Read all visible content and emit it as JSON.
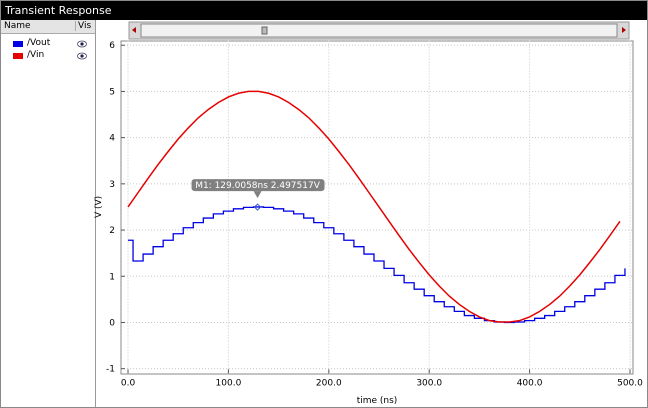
{
  "window_title": "Transient Response",
  "panel": {
    "name_header": "Name",
    "vis_header": "Vis"
  },
  "chart_data": {
    "type": "line",
    "xlabel": "time (ns)",
    "ylabel": "V (V)",
    "xlim": [
      -7,
      503
    ],
    "ylim": [
      -1.1,
      6.1
    ],
    "xticks": [
      {
        "value": 0,
        "label": "0.0"
      },
      {
        "value": 100,
        "label": "100.0"
      },
      {
        "value": 200,
        "label": "200.0"
      },
      {
        "value": 300,
        "label": "300.0"
      },
      {
        "value": 400,
        "label": "400.0"
      },
      {
        "value": 500,
        "label": "500.0"
      }
    ],
    "yticks": [
      -1,
      0,
      1,
      2,
      3,
      4,
      5,
      6
    ],
    "grid": true,
    "series": [
      {
        "name": "/Vout",
        "color": "#0000e6",
        "step": true,
        "x": [
          0,
          5,
          15,
          25,
          35,
          45,
          55,
          65,
          75,
          85,
          95,
          105,
          115,
          125,
          135,
          145,
          155,
          165,
          175,
          185,
          195,
          205,
          215,
          225,
          235,
          245,
          255,
          265,
          275,
          285,
          295,
          305,
          315,
          325,
          335,
          345,
          355,
          365,
          375,
          385,
          395,
          405,
          415,
          425,
          435,
          445,
          455,
          465,
          475,
          485,
          495
        ],
        "values": [
          1.78,
          1.33,
          1.48,
          1.64,
          1.78,
          1.92,
          2.05,
          2.16,
          2.26,
          2.35,
          2.41,
          2.46,
          2.49,
          2.5,
          2.49,
          2.46,
          2.41,
          2.35,
          2.26,
          2.16,
          2.05,
          1.92,
          1.78,
          1.64,
          1.48,
          1.33,
          1.17,
          1.02,
          0.86,
          0.72,
          0.58,
          0.45,
          0.34,
          0.24,
          0.15,
          0.09,
          0.04,
          0.01,
          0,
          0.01,
          0.04,
          0.09,
          0.15,
          0.24,
          0.34,
          0.45,
          0.58,
          0.72,
          0.86,
          1.02,
          1.17
        ]
      },
      {
        "name": "/Vin",
        "color": "#e60000",
        "step": false,
        "x": [
          0,
          10,
          20,
          30,
          40,
          50,
          60,
          70,
          80,
          90,
          100,
          110,
          120,
          130,
          140,
          150,
          160,
          170,
          180,
          190,
          200,
          210,
          220,
          230,
          240,
          250,
          260,
          270,
          280,
          290,
          300,
          310,
          320,
          330,
          340,
          350,
          360,
          370,
          380,
          390,
          400,
          410,
          420,
          430,
          440,
          450,
          460,
          470,
          480,
          490
        ],
        "values": [
          2.5,
          2.81,
          3.12,
          3.42,
          3.7,
          3.97,
          4.21,
          4.43,
          4.61,
          4.76,
          4.88,
          4.96,
          5.0,
          5.0,
          4.96,
          4.88,
          4.76,
          4.61,
          4.43,
          4.21,
          3.97,
          3.7,
          3.42,
          3.12,
          2.81,
          2.5,
          2.19,
          1.88,
          1.58,
          1.3,
          1.03,
          0.79,
          0.57,
          0.39,
          0.24,
          0.12,
          0.04,
          0.01,
          0.01,
          0.04,
          0.12,
          0.24,
          0.39,
          0.57,
          0.79,
          1.03,
          1.3,
          1.58,
          1.88,
          2.19
        ]
      }
    ],
    "marker": {
      "x": 129.0058,
      "y": 2.497517,
      "label": "M1: 129.0058ns 2.497517V"
    }
  }
}
